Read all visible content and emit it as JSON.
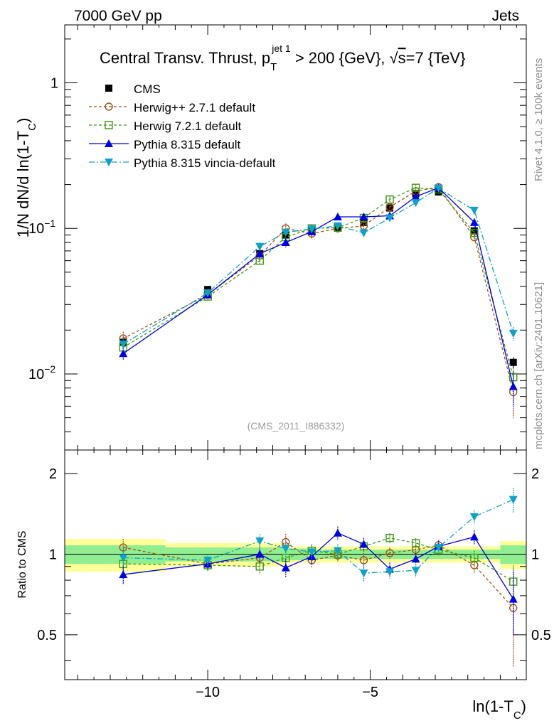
{
  "header": {
    "left": "7000 GeV pp",
    "right": "Jets"
  },
  "side_labels": {
    "rivet": "Rivet 4.1.0, ≥ 100k events",
    "mcplots": "mcplots.cern.ch [arXiv:2401.10621]"
  },
  "colors": {
    "cms": "#000000",
    "herwigpp": "#a0521a",
    "herwig7": "#3c9a12",
    "pythia": "#0000e0",
    "vincia": "#10a0c8",
    "band_outer": "#ffff99",
    "band_inner": "#90ee90"
  },
  "chart_data": {
    "type": "line",
    "title": "Central Transv. Thrust, p_T^{jet 1} > 200 {GeV}, √s=7 {TeV}",
    "title_parts": {
      "pre": "Central Transv. Thrust, p",
      "sup": "jet 1",
      "sub": "T",
      "post": " > 200 {GeV}, ",
      "sqrt": "√",
      "s_label": "s",
      "tail": "=7 {TeV}"
    },
    "analysis_tag": "(CMS_2011_I886332)",
    "xlabel": "ln(1-T_C)",
    "xlabel_parts": {
      "main": "ln(1-T",
      "sub": "C",
      "close": ")"
    },
    "ylabel": "1/N   dN/d ln(1-T_C)",
    "ylabel_parts": {
      "main": "1/N    dN/d ln(1-T",
      "sub": "C",
      "close": ")"
    },
    "ratio_ylabel": "Ratio to CMS",
    "xlim": [
      -14.4,
      -0.2
    ],
    "ylim": [
      0.003,
      2.5
    ],
    "ratio_ylim": [
      0.34,
      2.45
    ],
    "x_ticks": [
      {
        "value": -10,
        "label": "−10"
      },
      {
        "value": -5,
        "label": "−5"
      }
    ],
    "y_ticks": [
      {
        "value": 1,
        "label": "1"
      },
      {
        "value": 0.1,
        "label": "10",
        "exp": "−1"
      },
      {
        "value": 0.01,
        "label": "10",
        "exp": "−2"
      }
    ],
    "ratio_ticks": [
      {
        "value": 0.5,
        "label": "0.5"
      },
      {
        "value": 1,
        "label": "1"
      },
      {
        "value": 2,
        "label": "2"
      }
    ],
    "bins": [
      {
        "lo": -14.4,
        "hi": -11.3,
        "yellow": 0.14,
        "green": 0.08
      },
      {
        "lo": -11.3,
        "hi": -7.6,
        "yellow": 0.1,
        "green": 0.06
      },
      {
        "lo": -7.6,
        "hi": -6.9,
        "yellow": 0.07,
        "green": 0.05
      },
      {
        "lo": -6.9,
        "hi": -1.0,
        "yellow": 0.07,
        "green": 0.04
      },
      {
        "lo": -1.0,
        "hi": -0.2,
        "yellow": 0.12,
        "green": 0.08
      }
    ],
    "x": [
      -12.6,
      -10.0,
      -8.4,
      -7.6,
      -6.8,
      -6.0,
      -5.2,
      -4.4,
      -3.6,
      -2.9,
      -1.8,
      -0.6
    ],
    "series": [
      {
        "name": "CMS",
        "style": "data",
        "values": [
          0.0165,
          0.038,
          0.067,
          0.09,
          0.097,
          0.101,
          0.11,
          0.138,
          0.173,
          0.178,
          0.096,
          0.012
        ],
        "errors": [
          0.0015,
          0.002,
          0.004,
          0.005,
          0.005,
          0.005,
          0.006,
          0.007,
          0.009,
          0.009,
          0.006,
          0.001
        ]
      },
      {
        "name": "Herwig++ 2.7.1 default",
        "style": "dashed",
        "marker": "open-circle",
        "values": [
          0.0175,
          0.035,
          0.065,
          0.1,
          0.092,
          0.1,
          0.104,
          0.14,
          0.18,
          0.192,
          0.087,
          0.0075
        ],
        "errors": [
          0.002,
          0.002,
          0.005,
          0.008,
          0.007,
          0.006,
          0.007,
          0.008,
          0.01,
          0.01,
          0.006,
          0.0025
        ]
      },
      {
        "name": "Herwig 7.2.1 default",
        "style": "dashed",
        "marker": "open-square",
        "values": [
          0.0152,
          0.034,
          0.06,
          0.087,
          0.1,
          0.101,
          0.118,
          0.158,
          0.19,
          0.185,
          0.093,
          0.0095
        ],
        "errors": [
          0.0015,
          0.002,
          0.004,
          0.006,
          0.006,
          0.005,
          0.007,
          0.008,
          0.01,
          0.01,
          0.006,
          0.0015
        ]
      },
      {
        "name": "Pythia 8.315 default",
        "style": "solid",
        "marker": "triangle-up",
        "values": [
          0.0138,
          0.035,
          0.067,
          0.08,
          0.095,
          0.12,
          0.12,
          0.122,
          0.165,
          0.19,
          0.11,
          0.0082
        ],
        "errors": [
          0.0014,
          0.002,
          0.005,
          0.006,
          0.006,
          0.006,
          0.007,
          0.007,
          0.009,
          0.01,
          0.007,
          0.0022
        ]
      },
      {
        "name": "Pythia 8.315 vincia-default",
        "style": "dashdot",
        "marker": "triangle-down",
        "values": [
          0.016,
          0.036,
          0.075,
          0.094,
          0.099,
          0.104,
          0.093,
          0.118,
          0.15,
          0.189,
          0.133,
          0.019
        ],
        "errors": [
          0.0015,
          0.002,
          0.005,
          0.006,
          0.006,
          0.006,
          0.006,
          0.007,
          0.008,
          0.01,
          0.008,
          0.002
        ]
      }
    ],
    "ratios": [
      {
        "name": "Herwig++ 2.7.1 default",
        "values": [
          1.06,
          0.92,
          0.97,
          1.11,
          0.95,
          0.99,
          0.95,
          1.01,
          1.04,
          1.08,
          0.91,
          0.63
        ],
        "errors": [
          0.08,
          0.05,
          0.06,
          0.08,
          0.06,
          0.05,
          0.06,
          0.05,
          0.05,
          0.05,
          0.06,
          0.25
        ]
      },
      {
        "name": "Herwig 7.2.1 default",
        "values": [
          0.92,
          0.91,
          0.9,
          0.97,
          1.03,
          1.0,
          1.07,
          1.15,
          1.1,
          1.04,
          0.97,
          0.79
        ],
        "errors": [
          0.07,
          0.05,
          0.06,
          0.07,
          0.06,
          0.05,
          0.06,
          0.05,
          0.05,
          0.05,
          0.06,
          0.12
        ]
      },
      {
        "name": "Pythia 8.315 default",
        "values": [
          0.84,
          0.92,
          1.0,
          0.89,
          0.98,
          1.2,
          1.09,
          0.88,
          0.96,
          1.07,
          1.16,
          0.68
        ],
        "errors": [
          0.07,
          0.05,
          0.07,
          0.07,
          0.06,
          0.07,
          0.06,
          0.05,
          0.05,
          0.05,
          0.07,
          0.18
        ]
      },
      {
        "name": "Pythia 8.315 vincia-default",
        "values": [
          0.97,
          0.95,
          1.12,
          1.05,
          1.02,
          1.03,
          0.85,
          0.86,
          0.87,
          1.06,
          1.38,
          1.6
        ],
        "errors": [
          0.08,
          0.05,
          0.07,
          0.07,
          0.06,
          0.06,
          0.06,
          0.05,
          0.05,
          0.05,
          0.08,
          0.17
        ]
      }
    ]
  }
}
